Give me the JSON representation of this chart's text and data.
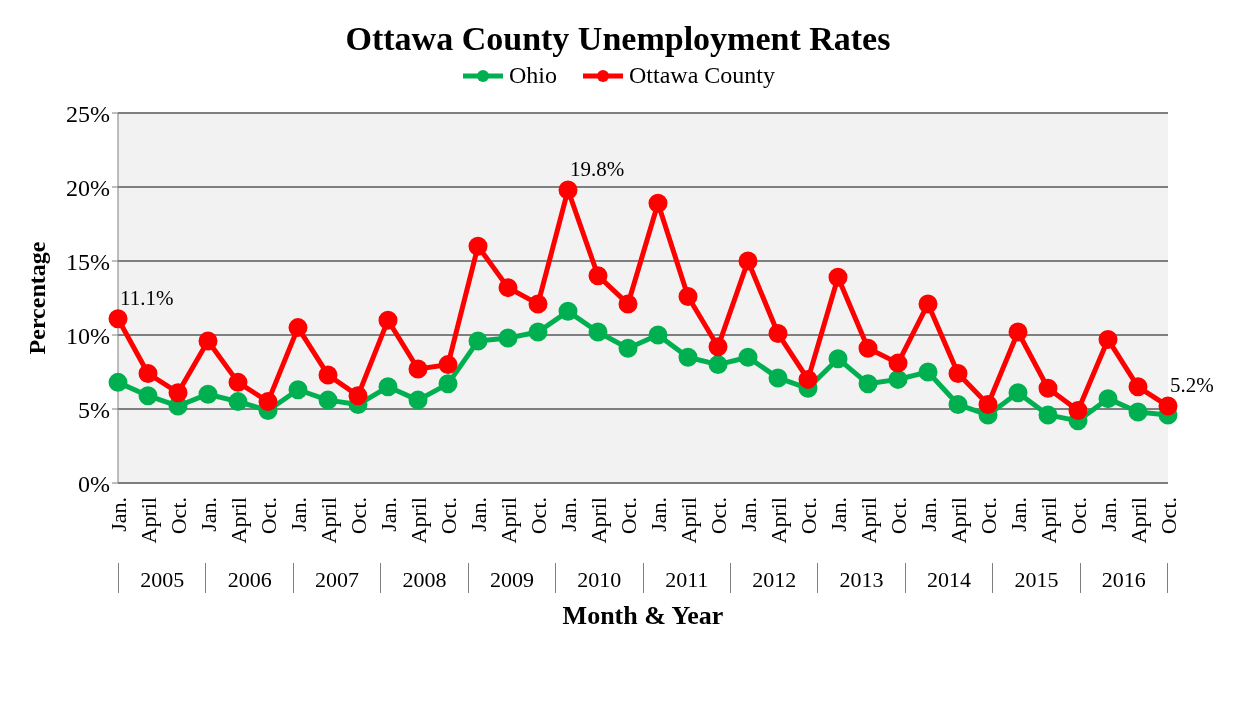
{
  "chart_data": {
    "type": "line",
    "title": "Ottawa County Unemployment Rates",
    "xlabel": "Month & Year",
    "ylabel": "Percentage",
    "categories": [
      "Jan.",
      "April",
      "Oct.",
      "Jan.",
      "April",
      "Oct.",
      "Jan.",
      "April",
      "Oct.",
      "Jan.",
      "April",
      "Oct.",
      "Jan.",
      "April",
      "Oct.",
      "Jan.",
      "April",
      "Oct.",
      "Jan.",
      "April",
      "Oct.",
      "Jan.",
      "April",
      "Oct.",
      "Jan.",
      "April",
      "Oct.",
      "Jan.",
      "April",
      "Oct.",
      "Jan.",
      "April",
      "Oct.",
      "Jan.",
      "April",
      "Oct."
    ],
    "series": [
      {
        "name": "Ohio",
        "color": "#00b050",
        "values": [
          6.8,
          5.9,
          5.2,
          6.0,
          5.5,
          4.9,
          6.3,
          5.6,
          5.3,
          6.5,
          5.6,
          6.7,
          9.6,
          9.8,
          10.2,
          11.6,
          10.2,
          9.1,
          10.0,
          8.5,
          8.0,
          8.5,
          7.1,
          6.4,
          8.4,
          6.7,
          7.0,
          7.5,
          5.3,
          4.6,
          6.1,
          4.6,
          4.2,
          5.7,
          4.8,
          4.6
        ]
      },
      {
        "name": "Ottawa County",
        "color": "#ff0000",
        "values": [
          11.1,
          7.4,
          6.1,
          9.6,
          6.8,
          5.5,
          10.5,
          7.3,
          5.9,
          11.0,
          7.7,
          8.0,
          16.0,
          13.2,
          12.1,
          19.8,
          14.0,
          12.1,
          18.9,
          12.6,
          9.2,
          15.0,
          10.1,
          7.0,
          13.9,
          9.1,
          8.1,
          12.1,
          7.4,
          5.3,
          10.2,
          6.4,
          4.9,
          9.7,
          6.5,
          5.2
        ],
        "value_labels": [
          "11.1%",
          null,
          null,
          null,
          null,
          null,
          null,
          null,
          null,
          null,
          null,
          null,
          null,
          null,
          null,
          "19.8%",
          null,
          null,
          null,
          null,
          null,
          null,
          null,
          null,
          null,
          null,
          null,
          null,
          null,
          null,
          null,
          null,
          null,
          null,
          null,
          "5.2%"
        ]
      }
    ],
    "annotations": [
      "2005",
      "2006",
      "2007",
      "2008",
      "2009",
      "2010",
      "2011",
      "2012",
      "2013",
      "2014",
      "2015",
      "2016"
    ],
    "ylim": [
      0,
      25
    ],
    "yticks": [
      {
        "value": 0,
        "label": "0%"
      },
      {
        "value": 5,
        "label": "5%"
      },
      {
        "value": 10,
        "label": "10%"
      },
      {
        "value": 15,
        "label": "15%"
      },
      {
        "value": 20,
        "label": "20%"
      },
      {
        "value": 25,
        "label": "25%"
      }
    ],
    "grid": "y",
    "legend": "top",
    "marker": "circle",
    "line_style": "solid"
  }
}
